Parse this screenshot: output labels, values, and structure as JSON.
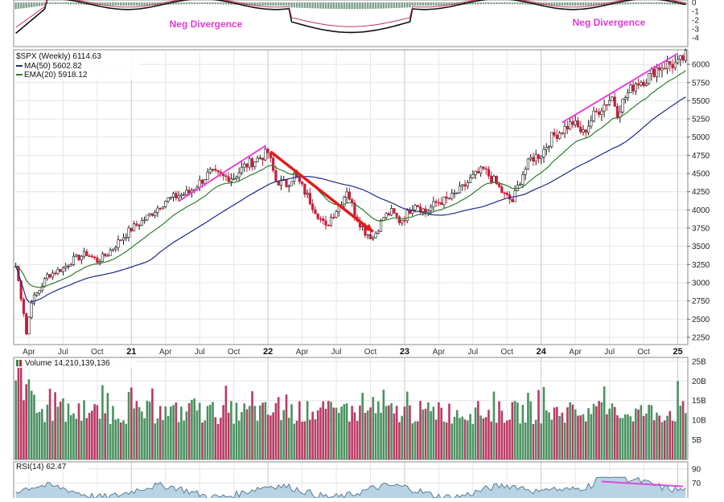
{
  "chart_data": {
    "type": "candlestick",
    "symbol_label": "$SPX (Weekly) 6114.63",
    "series_lines": [
      {
        "name": "MA(50) 5602.82",
        "color": "#1d2a8c"
      },
      {
        "name": "EMA(20) 5918.12",
        "color": "#2f7d2f"
      }
    ],
    "price_ticks": [
      "6000",
      "5750",
      "5500",
      "5250",
      "5000",
      "4750",
      "4500",
      "4250",
      "4000",
      "3750",
      "3500",
      "3250",
      "3000",
      "2750",
      "2500",
      "2250"
    ],
    "price_tick_values": [
      6000,
      5750,
      5500,
      5250,
      5000,
      4750,
      4500,
      4250,
      4000,
      3750,
      3500,
      3250,
      3000,
      2750,
      2500,
      2250
    ],
    "ylim": [
      2150,
      6200
    ],
    "x_labels": [
      "Apr",
      "Jul",
      "Oct",
      "21",
      "Apr",
      "Jul",
      "Oct",
      "22",
      "Apr",
      "Jul",
      "Oct",
      "23",
      "Apr",
      "Jul",
      "Oct",
      "24",
      "Apr",
      "Jul",
      "Oct",
      "25"
    ],
    "x_label_weeks": [
      5,
      18,
      31,
      44,
      57,
      70,
      83,
      96,
      109,
      122,
      135,
      148,
      161,
      174,
      187,
      200,
      213,
      226,
      239,
      252
    ],
    "year_labels": [
      "21",
      "22",
      "23",
      "24",
      "25"
    ],
    "weekly_close_anchors": [
      [
        0,
        3230
      ],
      [
        3,
        2600
      ],
      [
        4,
        2300
      ],
      [
        6,
        2750
      ],
      [
        9,
        2900
      ],
      [
        12,
        3100
      ],
      [
        15,
        3150
      ],
      [
        18,
        3200
      ],
      [
        22,
        3320
      ],
      [
        27,
        3400
      ],
      [
        31,
        3300
      ],
      [
        35,
        3400
      ],
      [
        40,
        3600
      ],
      [
        44,
        3740
      ],
      [
        50,
        3900
      ],
      [
        57,
        4130
      ],
      [
        62,
        4200
      ],
      [
        66,
        4240
      ],
      [
        70,
        4380
      ],
      [
        74,
        4510
      ],
      [
        79,
        4450
      ],
      [
        83,
        4450
      ],
      [
        87,
        4600
      ],
      [
        92,
        4700
      ],
      [
        96,
        4790
      ],
      [
        99,
        4400
      ],
      [
        103,
        4350
      ],
      [
        106,
        4480
      ],
      [
        110,
        4250
      ],
      [
        114,
        4000
      ],
      [
        118,
        3750
      ],
      [
        120,
        3900
      ],
      [
        124,
        4100
      ],
      [
        126,
        4280
      ],
      [
        129,
        3950
      ],
      [
        133,
        3700
      ],
      [
        136,
        3620
      ],
      [
        140,
        3900
      ],
      [
        143,
        3970
      ],
      [
        146,
        3850
      ],
      [
        148,
        3900
      ],
      [
        152,
        4100
      ],
      [
        156,
        3970
      ],
      [
        160,
        4100
      ],
      [
        165,
        4150
      ],
      [
        170,
        4300
      ],
      [
        174,
        4450
      ],
      [
        178,
        4550
      ],
      [
        182,
        4400
      ],
      [
        186,
        4200
      ],
      [
        189,
        4120
      ],
      [
        193,
        4500
      ],
      [
        196,
        4700
      ],
      [
        200,
        4770
      ],
      [
        204,
        5000
      ],
      [
        208,
        5100
      ],
      [
        212,
        5200
      ],
      [
        216,
        5050
      ],
      [
        220,
        5300
      ],
      [
        224,
        5450
      ],
      [
        227,
        5550
      ],
      [
        229,
        5350
      ],
      [
        232,
        5550
      ],
      [
        236,
        5750
      ],
      [
        240,
        5800
      ],
      [
        244,
        5950
      ],
      [
        248,
        6000
      ],
      [
        252,
        6000
      ],
      [
        255,
        6114
      ]
    ]
  },
  "volume": {
    "label": "Volume 14,210,139,136",
    "ticks": [
      "25B",
      "20B",
      "15B",
      "10B",
      "5B"
    ],
    "tick_values": [
      25,
      20,
      15,
      10,
      5
    ],
    "ymax": 26
  },
  "rsi": {
    "label": "RSI(14) 62.47",
    "ticks": [
      "90",
      "70"
    ],
    "tick_values": [
      90,
      70
    ]
  },
  "top_indicator": {
    "ticks": [
      "0",
      "-1",
      "-2",
      "-3",
      "-4"
    ],
    "tick_values": [
      0,
      -1,
      -2,
      -3,
      -4
    ]
  },
  "annotations": {
    "neg_divergence_1": "Neg Divergence",
    "neg_divergence_2": "Neg Divergence"
  },
  "colors": {
    "up": "#2e8b4f",
    "down": "#c81e3a",
    "divergence": "#e646d8",
    "arrow": "#e31b1b",
    "ma50": "#1d2a8c",
    "ema20": "#2f7d2f",
    "vol_up": "#4a9160",
    "vol_down": "#b83a63"
  }
}
